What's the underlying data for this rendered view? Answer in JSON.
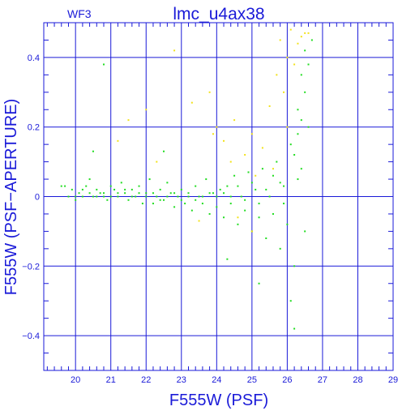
{
  "chart_data": {
    "type": "scatter",
    "title": "lmc_u4ax38",
    "subtitle": "WF3",
    "xlabel": "F555W (PSF)",
    "ylabel": "F555W (PSF−APERTURE)",
    "xlim": [
      19.1,
      29.0
    ],
    "ylim": [
      -0.5,
      0.5
    ],
    "x_ticks": [
      20,
      21,
      22,
      23,
      24,
      25,
      26,
      27,
      28,
      29
    ],
    "y_ticks": [
      -0.4,
      -0.2,
      0,
      0.2,
      0.4
    ],
    "y_tick_labels": [
      "−0.4",
      "−0.2",
      "0",
      "0.2",
      "0.4"
    ],
    "grid": true,
    "colors": {
      "axes": "#1a1ad8",
      "green_points": "#22dd22",
      "yellow_points": "#f2e21a"
    },
    "series": [
      {
        "color": "#22dd22",
        "points": [
          [
            19.6,
            0.03
          ],
          [
            19.7,
            0.03
          ],
          [
            19.8,
            0.0
          ],
          [
            19.9,
            0.02
          ],
          [
            20.0,
            -0.01
          ],
          [
            20.1,
            0.01
          ],
          [
            20.2,
            0.0
          ],
          [
            20.3,
            0.03
          ],
          [
            20.4,
            0.05
          ],
          [
            20.5,
            0.0
          ],
          [
            20.6,
            0.02
          ],
          [
            20.7,
            0.01
          ],
          [
            20.8,
            0.0
          ],
          [
            20.9,
            -0.01
          ],
          [
            21.0,
            0.03
          ],
          [
            21.1,
            0.02
          ],
          [
            21.2,
            0.0
          ],
          [
            21.3,
            0.04
          ],
          [
            21.4,
            0.01
          ],
          [
            21.5,
            -0.01
          ],
          [
            21.6,
            0.02
          ],
          [
            21.7,
            0.0
          ],
          [
            21.8,
            0.03
          ],
          [
            21.9,
            -0.02
          ],
          [
            22.0,
            0.01
          ],
          [
            22.1,
            0.05
          ],
          [
            22.2,
            -0.02
          ],
          [
            22.3,
            0.0
          ],
          [
            22.4,
            0.02
          ],
          [
            22.5,
            -0.01
          ],
          [
            22.6,
            0.04
          ],
          [
            22.7,
            0.01
          ],
          [
            22.8,
            -0.03
          ],
          [
            22.9,
            0.0
          ],
          [
            23.0,
            0.02
          ],
          [
            23.1,
            -0.02
          ],
          [
            23.2,
            0.01
          ],
          [
            23.3,
            -0.04
          ],
          [
            23.4,
            0.03
          ],
          [
            23.5,
            0.0
          ],
          [
            23.6,
            -0.02
          ],
          [
            23.7,
            0.05
          ],
          [
            23.8,
            -0.05
          ],
          [
            23.9,
            0.01
          ],
          [
            24.0,
            -0.03
          ],
          [
            24.1,
            0.02
          ],
          [
            24.2,
            -0.06
          ],
          [
            24.3,
            0.03
          ],
          [
            24.4,
            -0.02
          ],
          [
            24.5,
            0.06
          ],
          [
            24.6,
            -0.08
          ],
          [
            24.7,
            0.0
          ],
          [
            24.8,
            -0.04
          ],
          [
            24.9,
            0.07
          ],
          [
            25.0,
            -0.1
          ],
          [
            25.1,
            0.02
          ],
          [
            25.2,
            -0.06
          ],
          [
            25.3,
            0.08
          ],
          [
            25.4,
            -0.12
          ],
          [
            25.5,
            0.0
          ],
          [
            25.6,
            -0.05
          ],
          [
            25.7,
            0.1
          ],
          [
            25.8,
            -0.15
          ],
          [
            25.9,
            0.03
          ],
          [
            26.0,
            -0.08
          ],
          [
            26.1,
            0.15
          ],
          [
            26.2,
            -0.2
          ],
          [
            26.3,
            0.05
          ],
          [
            26.4,
            0.22
          ],
          [
            26.5,
            0.3
          ],
          [
            26.6,
            0.38
          ],
          [
            26.7,
            0.45
          ],
          [
            26.2,
            0.12
          ],
          [
            26.3,
            0.18
          ],
          [
            26.4,
            0.08
          ],
          [
            26.5,
            -0.1
          ],
          [
            26.6,
            0.2
          ],
          [
            26.5,
            0.42
          ],
          [
            26.4,
            0.35
          ],
          [
            26.3,
            0.25
          ],
          [
            25.9,
            -0.02
          ],
          [
            25.8,
            0.04
          ],
          [
            25.6,
            0.06
          ],
          [
            25.4,
            0.02
          ],
          [
            25.2,
            -0.02
          ],
          [
            25.0,
            0.04
          ],
          [
            24.8,
            -0.01
          ],
          [
            24.6,
            0.03
          ],
          [
            24.4,
            0.0
          ],
          [
            24.2,
            0.01
          ],
          [
            24.0,
            0.0
          ],
          [
            23.8,
            0.01
          ],
          [
            23.6,
            0.0
          ],
          [
            23.4,
            -0.01
          ],
          [
            23.2,
            0.0
          ],
          [
            23.0,
            -0.01
          ],
          [
            22.8,
            0.01
          ],
          [
            22.6,
            0.0
          ],
          [
            22.4,
            -0.01
          ],
          [
            22.2,
            0.01
          ],
          [
            22.0,
            0.0
          ],
          [
            21.8,
            0.01
          ],
          [
            21.6,
            0.0
          ],
          [
            21.4,
            0.02
          ],
          [
            21.2,
            0.01
          ],
          [
            21.0,
            0.0
          ],
          [
            20.8,
            0.01
          ],
          [
            20.6,
            0.0
          ],
          [
            20.4,
            0.01
          ],
          [
            20.2,
            0.02
          ],
          [
            20.0,
            0.0
          ],
          [
            20.8,
            0.38
          ],
          [
            20.5,
            0.13
          ],
          [
            22.5,
            0.13
          ],
          [
            24.3,
            -0.18
          ],
          [
            25.2,
            -0.25
          ],
          [
            26.1,
            -0.3
          ],
          [
            26.2,
            -0.38
          ]
        ]
      },
      {
        "color": "#f2e21a",
        "points": [
          [
            21.5,
            0.22
          ],
          [
            22.0,
            0.25
          ],
          [
            22.8,
            0.42
          ],
          [
            23.3,
            0.27
          ],
          [
            23.8,
            0.3
          ],
          [
            24.0,
            0.2
          ],
          [
            24.2,
            0.16
          ],
          [
            24.5,
            0.22
          ],
          [
            24.8,
            0.12
          ],
          [
            25.0,
            0.18
          ],
          [
            25.3,
            0.14
          ],
          [
            25.5,
            0.26
          ],
          [
            25.7,
            0.35
          ],
          [
            25.8,
            0.45
          ],
          [
            25.9,
            0.3
          ],
          [
            26.0,
            0.4
          ],
          [
            26.1,
            0.48
          ],
          [
            26.2,
            0.38
          ],
          [
            26.3,
            0.44
          ],
          [
            26.4,
            0.46
          ],
          [
            26.5,
            0.47
          ],
          [
            26.6,
            0.47
          ],
          [
            26.0,
            0.2
          ],
          [
            25.6,
            0.08
          ],
          [
            25.1,
            0.06
          ],
          [
            24.6,
            -0.06
          ],
          [
            25.0,
            -0.1
          ],
          [
            24.4,
            0.1
          ],
          [
            23.9,
            0.18
          ],
          [
            22.3,
            0.1
          ],
          [
            21.2,
            0.16
          ],
          [
            23.5,
            -0.07
          ]
        ]
      }
    ]
  }
}
